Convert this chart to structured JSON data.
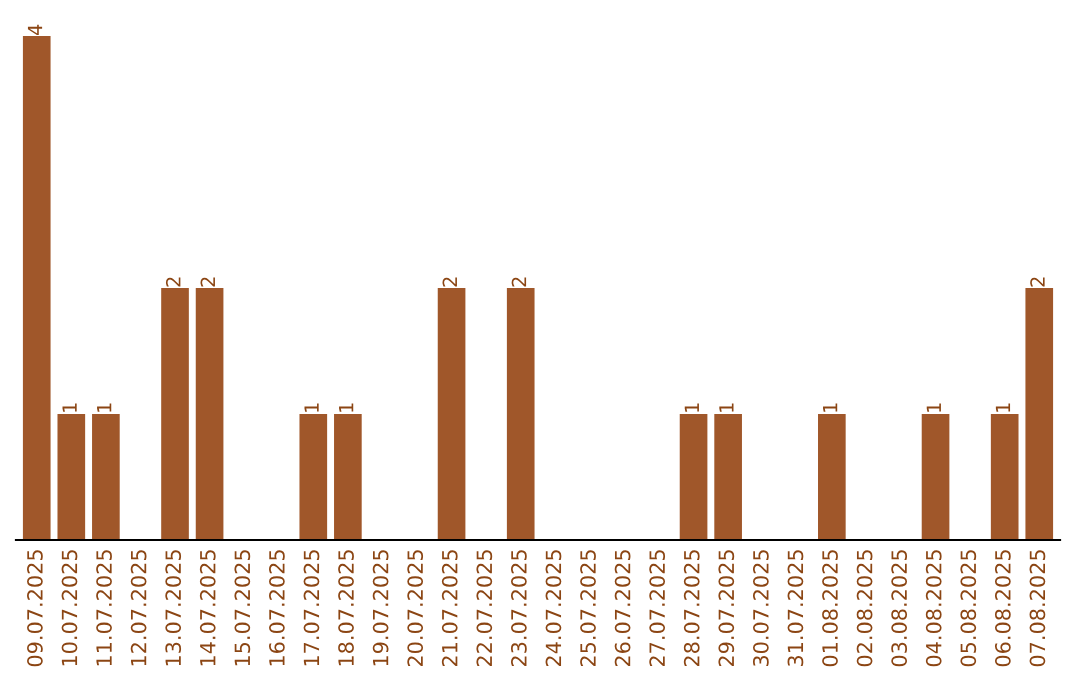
{
  "chart_data": {
    "type": "bar",
    "categories": [
      "09.07.2025",
      "10.07.2025",
      "11.07.2025",
      "12.07.2025",
      "13.07.2025",
      "14.07.2025",
      "15.07.2025",
      "16.07.2025",
      "17.07.2025",
      "18.07.2025",
      "19.07.2025",
      "20.07.2025",
      "21.07.2025",
      "22.07.2025",
      "23.07.2025",
      "24.07.2025",
      "25.07.2025",
      "26.07.2025",
      "27.07.2025",
      "28.07.2025",
      "29.07.2025",
      "30.07.2025",
      "31.07.2025",
      "01.08.2025",
      "02.08.2025",
      "03.08.2025",
      "04.08.2025",
      "05.08.2025",
      "06.08.2025",
      "07.08.2025"
    ],
    "values": [
      4,
      1,
      1,
      0,
      2,
      2,
      0,
      0,
      1,
      1,
      0,
      0,
      2,
      0,
      2,
      0,
      0,
      0,
      0,
      1,
      1,
      0,
      0,
      1,
      0,
      0,
      1,
      0,
      1,
      2
    ],
    "value_labels": [
      "4",
      "1",
      "1",
      null,
      "2",
      "2",
      null,
      null,
      "1",
      "1",
      null,
      null,
      "2",
      null,
      "2",
      null,
      null,
      null,
      null,
      "1",
      "1",
      null,
      null,
      "1",
      null,
      null,
      "1",
      null,
      "1",
      "2"
    ],
    "color": "#a0572a",
    "tick_labels": "x",
    "grid": false,
    "legend": false
  }
}
